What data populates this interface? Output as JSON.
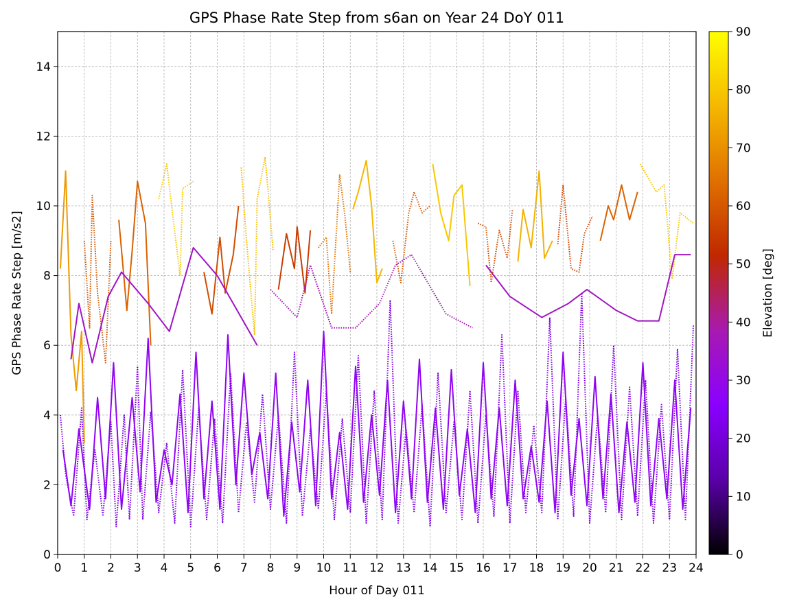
{
  "chart_data": {
    "type": "scatter",
    "title": "GPS Phase Rate Step from s6an on Year 24 DoY 011",
    "xlabel": "Hour of Day 011",
    "ylabel": "GPS Phase Rate Step [m/s2]",
    "xlim": [
      0,
      24
    ],
    "ylim": [
      0,
      15
    ],
    "x_ticks": [
      "0",
      "1",
      "2",
      "3",
      "4",
      "5",
      "6",
      "7",
      "8",
      "9",
      "10",
      "11",
      "12",
      "13",
      "14",
      "15",
      "16",
      "17",
      "18",
      "19",
      "20",
      "21",
      "22",
      "23",
      "24"
    ],
    "y_ticks": [
      "0",
      "2",
      "4",
      "6",
      "8",
      "10",
      "12",
      "14"
    ],
    "grid": true,
    "colorbar": {
      "label": "Elevation [deg]",
      "range": [
        0,
        90
      ],
      "ticks": [
        "0",
        "10",
        "20",
        "30",
        "40",
        "50",
        "60",
        "70",
        "80",
        "90"
      ],
      "colormap": "gnuplot",
      "colors": [
        "#000000",
        "#5a00a8",
        "#8a00ff",
        "#a81ab0",
        "#c02800",
        "#e07000",
        "#f5b800",
        "#ffff00"
      ]
    },
    "series": [
      {
        "elevation": 72,
        "points": [
          [
            0.1,
            8.2
          ],
          [
            0.3,
            11.0
          ],
          [
            0.5,
            6.3
          ],
          [
            0.7,
            4.7
          ],
          [
            0.9,
            6.4
          ],
          [
            1.0,
            3.2
          ]
        ]
      },
      {
        "elevation": 60,
        "points": [
          [
            1.0,
            9.0
          ],
          [
            1.2,
            6.5
          ],
          [
            1.3,
            10.3
          ],
          [
            1.5,
            7.5
          ],
          [
            1.8,
            5.5
          ],
          [
            2.0,
            9.0
          ]
        ]
      },
      {
        "elevation": 62,
        "points": [
          [
            2.3,
            9.6
          ],
          [
            2.6,
            7.0
          ],
          [
            2.8,
            8.7
          ],
          [
            3.0,
            10.7
          ],
          [
            3.3,
            9.5
          ],
          [
            3.5,
            6.0
          ]
        ]
      },
      {
        "elevation": 80,
        "points": [
          [
            3.8,
            10.2
          ],
          [
            4.1,
            11.2
          ],
          [
            4.3,
            9.9
          ],
          [
            4.6,
            8.0
          ],
          [
            4.7,
            10.5
          ],
          [
            5.1,
            10.7
          ]
        ]
      },
      {
        "elevation": 58,
        "points": [
          [
            5.5,
            8.1
          ],
          [
            5.8,
            6.9
          ],
          [
            6.1,
            9.1
          ],
          [
            6.3,
            7.5
          ],
          [
            6.6,
            8.6
          ],
          [
            6.8,
            10.0
          ]
        ]
      },
      {
        "elevation": 78,
        "points": [
          [
            6.9,
            11.1
          ],
          [
            7.1,
            9.0
          ],
          [
            7.4,
            6.3
          ],
          [
            7.5,
            10.2
          ],
          [
            7.8,
            11.4
          ],
          [
            8.1,
            8.7
          ]
        ]
      },
      {
        "elevation": 55,
        "points": [
          [
            8.3,
            7.6
          ],
          [
            8.6,
            9.2
          ],
          [
            8.9,
            8.2
          ],
          [
            9.0,
            9.4
          ],
          [
            9.3,
            7.5
          ],
          [
            9.5,
            9.3
          ]
        ]
      },
      {
        "elevation": 65,
        "points": [
          [
            9.8,
            8.8
          ],
          [
            10.1,
            9.1
          ],
          [
            10.3,
            6.9
          ],
          [
            10.6,
            10.9
          ],
          [
            10.8,
            9.7
          ],
          [
            11.0,
            8.1
          ]
        ]
      },
      {
        "elevation": 77,
        "points": [
          [
            11.1,
            9.9
          ],
          [
            11.3,
            10.4
          ],
          [
            11.6,
            11.3
          ],
          [
            11.8,
            10.0
          ],
          [
            12.0,
            7.8
          ],
          [
            12.2,
            8.2
          ]
        ]
      },
      {
        "elevation": 60,
        "points": [
          [
            12.6,
            9.0
          ],
          [
            12.9,
            7.8
          ],
          [
            13.2,
            9.8
          ],
          [
            13.4,
            10.4
          ],
          [
            13.7,
            9.8
          ],
          [
            14.0,
            10.0
          ]
        ]
      },
      {
        "elevation": 80,
        "points": [
          [
            14.1,
            11.2
          ],
          [
            14.4,
            9.8
          ],
          [
            14.7,
            9.0
          ],
          [
            14.9,
            10.3
          ],
          [
            15.2,
            10.6
          ],
          [
            15.5,
            7.7
          ]
        ]
      },
      {
        "elevation": 58,
        "points": [
          [
            15.8,
            9.5
          ],
          [
            16.1,
            9.4
          ],
          [
            16.3,
            7.8
          ],
          [
            16.6,
            9.3
          ],
          [
            16.9,
            8.5
          ],
          [
            17.1,
            9.9
          ]
        ]
      },
      {
        "elevation": 76,
        "points": [
          [
            17.3,
            8.4
          ],
          [
            17.5,
            9.9
          ],
          [
            17.8,
            8.8
          ],
          [
            18.1,
            11.0
          ],
          [
            18.3,
            8.5
          ],
          [
            18.6,
            9.0
          ]
        ]
      },
      {
        "elevation": 56,
        "points": [
          [
            18.8,
            8.9
          ],
          [
            19.0,
            10.6
          ],
          [
            19.3,
            8.2
          ],
          [
            19.6,
            8.1
          ],
          [
            19.8,
            9.2
          ],
          [
            20.1,
            9.7
          ]
        ]
      },
      {
        "elevation": 62,
        "points": [
          [
            20.4,
            9.0
          ],
          [
            20.7,
            10.0
          ],
          [
            20.9,
            9.6
          ],
          [
            21.2,
            10.6
          ],
          [
            21.5,
            9.6
          ],
          [
            21.8,
            10.4
          ]
        ]
      },
      {
        "elevation": 80,
        "points": [
          [
            21.9,
            11.2
          ],
          [
            22.2,
            10.8
          ],
          [
            22.5,
            10.4
          ],
          [
            22.8,
            10.6
          ],
          [
            23.1,
            7.9
          ],
          [
            23.4,
            9.8
          ],
          [
            23.9,
            9.5
          ]
        ]
      },
      {
        "elevation": 35,
        "points": [
          [
            0.5,
            5.6
          ],
          [
            0.8,
            7.2
          ],
          [
            1.3,
            5.5
          ],
          [
            1.9,
            7.4
          ],
          [
            2.4,
            8.1
          ],
          [
            3.4,
            7.2
          ],
          [
            4.2,
            6.4
          ],
          [
            5.1,
            8.8
          ],
          [
            6.0,
            8.0
          ],
          [
            7.5,
            6.0
          ]
        ]
      },
      {
        "elevation": 38,
        "points": [
          [
            8.0,
            7.6
          ],
          [
            9.0,
            6.8
          ],
          [
            9.5,
            8.3
          ],
          [
            10.3,
            6.5
          ],
          [
            11.2,
            6.5
          ],
          [
            12.1,
            7.2
          ],
          [
            12.7,
            8.3
          ],
          [
            13.3,
            8.6
          ],
          [
            14.6,
            6.9
          ],
          [
            15.6,
            6.5
          ]
        ]
      },
      {
        "elevation": 36,
        "points": [
          [
            16.1,
            8.3
          ],
          [
            17.0,
            7.4
          ],
          [
            18.2,
            6.8
          ],
          [
            19.2,
            7.2
          ],
          [
            19.9,
            7.6
          ],
          [
            21.0,
            7.0
          ],
          [
            21.8,
            6.7
          ],
          [
            22.6,
            6.7
          ],
          [
            23.2,
            8.6
          ],
          [
            23.8,
            8.6
          ]
        ]
      },
      {
        "elevation": 22,
        "points": [
          [
            0.1,
            4.0
          ],
          [
            0.3,
            2.3
          ],
          [
            0.6,
            1.1
          ],
          [
            0.9,
            4.2
          ],
          [
            1.1,
            1.0
          ],
          [
            1.4,
            3.0
          ],
          [
            1.7,
            1.1
          ],
          [
            2.0,
            3.8
          ],
          [
            2.2,
            0.8
          ],
          [
            2.5,
            4.0
          ],
          [
            2.7,
            1.0
          ],
          [
            3.0,
            5.4
          ],
          [
            3.2,
            1.0
          ],
          [
            3.5,
            4.1
          ],
          [
            3.8,
            1.2
          ],
          [
            4.1,
            3.2
          ],
          [
            4.4,
            0.9
          ],
          [
            4.7,
            5.3
          ],
          [
            5.0,
            0.8
          ],
          [
            5.3,
            4.2
          ],
          [
            5.6,
            1.0
          ],
          [
            5.9,
            3.9
          ],
          [
            6.2,
            0.9
          ],
          [
            6.5,
            5.2
          ],
          [
            6.8,
            1.2
          ],
          [
            7.1,
            3.8
          ],
          [
            7.4,
            1.5
          ],
          [
            7.7,
            4.6
          ],
          [
            8.0,
            1.3
          ],
          [
            8.3,
            4.0
          ],
          [
            8.6,
            0.9
          ],
          [
            8.9,
            5.8
          ],
          [
            9.2,
            1.1
          ],
          [
            9.5,
            3.6
          ],
          [
            9.8,
            1.3
          ],
          [
            10.1,
            4.7
          ],
          [
            10.4,
            1.0
          ],
          [
            10.7,
            3.9
          ],
          [
            11.0,
            1.2
          ],
          [
            11.3,
            5.7
          ],
          [
            11.6,
            0.9
          ],
          [
            11.9,
            4.7
          ],
          [
            12.2,
            1.0
          ],
          [
            12.5,
            7.3
          ],
          [
            12.8,
            0.9
          ],
          [
            13.1,
            3.6
          ],
          [
            13.4,
            1.2
          ],
          [
            13.7,
            4.3
          ],
          [
            14.0,
            0.8
          ],
          [
            14.3,
            5.2
          ],
          [
            14.6,
            1.2
          ],
          [
            14.9,
            3.8
          ],
          [
            15.2,
            1.0
          ],
          [
            15.5,
            4.7
          ],
          [
            15.8,
            0.9
          ],
          [
            16.1,
            4.0
          ],
          [
            16.4,
            1.1
          ],
          [
            16.7,
            6.3
          ],
          [
            17.0,
            0.9
          ],
          [
            17.3,
            4.7
          ],
          [
            17.6,
            1.2
          ],
          [
            17.9,
            3.7
          ],
          [
            18.2,
            1.2
          ],
          [
            18.5,
            6.8
          ],
          [
            18.8,
            1.0
          ],
          [
            19.1,
            4.5
          ],
          [
            19.4,
            1.1
          ],
          [
            19.7,
            7.5
          ],
          [
            20.0,
            0.9
          ],
          [
            20.3,
            4.0
          ],
          [
            20.6,
            1.2
          ],
          [
            20.9,
            6.0
          ],
          [
            21.2,
            1.0
          ],
          [
            21.5,
            4.8
          ],
          [
            21.8,
            1.1
          ],
          [
            22.1,
            5.0
          ],
          [
            22.4,
            0.9
          ],
          [
            22.7,
            4.3
          ],
          [
            23.0,
            1.0
          ],
          [
            23.3,
            5.9
          ],
          [
            23.6,
            1.0
          ],
          [
            23.9,
            6.6
          ]
        ]
      },
      {
        "elevation": 28,
        "points": [
          [
            0.2,
            3.0
          ],
          [
            0.5,
            1.4
          ],
          [
            0.8,
            3.6
          ],
          [
            1.2,
            1.3
          ],
          [
            1.5,
            4.5
          ],
          [
            1.8,
            1.6
          ],
          [
            2.1,
            5.5
          ],
          [
            2.4,
            1.3
          ],
          [
            2.8,
            4.5
          ],
          [
            3.1,
            1.8
          ],
          [
            3.4,
            6.2
          ],
          [
            3.7,
            1.5
          ],
          [
            4.0,
            3.0
          ],
          [
            4.3,
            2.0
          ],
          [
            4.6,
            4.6
          ],
          [
            4.9,
            1.2
          ],
          [
            5.2,
            5.8
          ],
          [
            5.5,
            1.6
          ],
          [
            5.8,
            4.4
          ],
          [
            6.1,
            1.3
          ],
          [
            6.4,
            6.3
          ],
          [
            6.7,
            2.0
          ],
          [
            7.0,
            5.2
          ],
          [
            7.3,
            2.3
          ],
          [
            7.6,
            3.5
          ],
          [
            7.9,
            1.6
          ],
          [
            8.2,
            5.2
          ],
          [
            8.5,
            1.1
          ],
          [
            8.8,
            3.8
          ],
          [
            9.1,
            1.8
          ],
          [
            9.4,
            5.0
          ],
          [
            9.7,
            1.4
          ],
          [
            10.0,
            6.4
          ],
          [
            10.3,
            1.6
          ],
          [
            10.6,
            3.5
          ],
          [
            10.9,
            1.3
          ],
          [
            11.2,
            5.4
          ],
          [
            11.5,
            1.5
          ],
          [
            11.8,
            4.0
          ],
          [
            12.1,
            1.7
          ],
          [
            12.4,
            5.0
          ],
          [
            12.7,
            1.2
          ],
          [
            13.0,
            4.4
          ],
          [
            13.3,
            1.6
          ],
          [
            13.6,
            5.6
          ],
          [
            13.9,
            1.5
          ],
          [
            14.2,
            4.2
          ],
          [
            14.5,
            1.3
          ],
          [
            14.8,
            5.3
          ],
          [
            15.1,
            1.7
          ],
          [
            15.4,
            3.6
          ],
          [
            15.7,
            1.2
          ],
          [
            16.0,
            5.5
          ],
          [
            16.3,
            1.6
          ],
          [
            16.6,
            4.2
          ],
          [
            16.9,
            1.4
          ],
          [
            17.2,
            5.0
          ],
          [
            17.5,
            1.6
          ],
          [
            17.8,
            3.1
          ],
          [
            18.1,
            1.5
          ],
          [
            18.4,
            4.4
          ],
          [
            18.7,
            1.2
          ],
          [
            19.0,
            5.8
          ],
          [
            19.3,
            1.7
          ],
          [
            19.6,
            3.9
          ],
          [
            19.9,
            1.4
          ],
          [
            20.2,
            5.1
          ],
          [
            20.5,
            1.6
          ],
          [
            20.8,
            4.6
          ],
          [
            21.1,
            1.2
          ],
          [
            21.4,
            3.8
          ],
          [
            21.7,
            1.5
          ],
          [
            22.0,
            5.5
          ],
          [
            22.3,
            1.4
          ],
          [
            22.6,
            3.9
          ],
          [
            22.9,
            1.6
          ],
          [
            23.2,
            5.0
          ],
          [
            23.5,
            1.3
          ],
          [
            23.8,
            4.2
          ]
        ]
      }
    ]
  }
}
